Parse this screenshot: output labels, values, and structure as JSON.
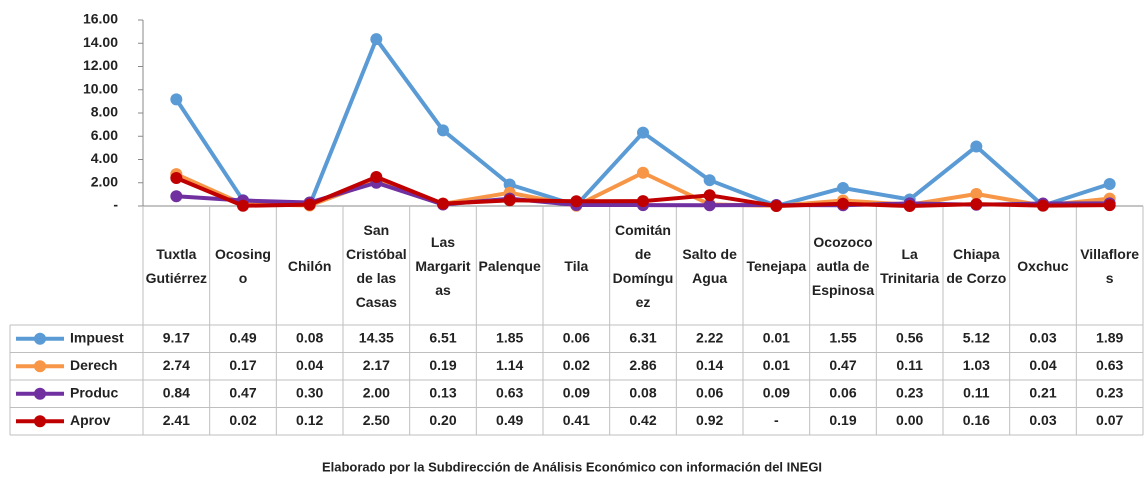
{
  "chart_data": {
    "type": "line",
    "categories": [
      "Tuxtla Gutiérrez",
      "Ocosingo",
      "Chilón",
      "San Cristóbal de las Casas",
      "Las Margaritas",
      "Palenque",
      "Tila",
      "Comitán de Domínguez",
      "Salto de Agua",
      "Tenejapa",
      "Ocozocoautla de Espinosa",
      "La Trinitaria",
      "Chiapa de Corzo",
      "Oxchuc",
      "Villaflores"
    ],
    "series": [
      {
        "name": "Impuest",
        "color": "#5b9bd5",
        "values": [
          9.17,
          0.49,
          0.08,
          14.35,
          6.51,
          1.85,
          0.06,
          6.31,
          2.22,
          0.01,
          1.55,
          0.56,
          5.12,
          0.03,
          1.89
        ],
        "value_labels": [
          "9.17",
          "0.49",
          "0.08",
          "14.35",
          "6.51",
          "1.85",
          "0.06",
          "6.31",
          "2.22",
          "0.01",
          "1.55",
          "0.56",
          "5.12",
          "0.03",
          "1.89"
        ]
      },
      {
        "name": "Derech",
        "color": "#f79646",
        "values": [
          2.74,
          0.17,
          0.04,
          2.17,
          0.19,
          1.14,
          0.02,
          2.86,
          0.14,
          0.01,
          0.47,
          0.11,
          1.03,
          0.04,
          0.63
        ],
        "value_labels": [
          "2.74",
          "0.17",
          "0.04",
          "2.17",
          "0.19",
          "1.14",
          "0.02",
          "2.86",
          "0.14",
          "0.01",
          "0.47",
          "0.11",
          "1.03",
          "0.04",
          "0.63"
        ]
      },
      {
        "name": "Produc",
        "color": "#7030a0",
        "values": [
          0.84,
          0.47,
          0.3,
          2.0,
          0.13,
          0.63,
          0.09,
          0.08,
          0.06,
          0.09,
          0.06,
          0.23,
          0.11,
          0.21,
          0.23
        ],
        "value_labels": [
          "0.84",
          "0.47",
          "0.30",
          "2.00",
          "0.13",
          "0.63",
          "0.09",
          "0.08",
          "0.06",
          "0.09",
          "0.06",
          "0.23",
          "0.11",
          "0.21",
          "0.23"
        ]
      },
      {
        "name": "Aprov",
        "color": "#c00000",
        "values": [
          2.41,
          0.02,
          0.12,
          2.5,
          0.2,
          0.49,
          0.41,
          0.42,
          0.92,
          0,
          0.19,
          0,
          0.16,
          0.03,
          0.07
        ],
        "value_labels": [
          "2.41",
          "0.02",
          "0.12",
          "2.50",
          "0.20",
          "0.49",
          "0.41",
          "0.42",
          "0.92",
          "-",
          "0.19",
          "0.00",
          "0.16",
          "0.03",
          "0.07"
        ]
      }
    ],
    "ylim": [
      0,
      16
    ],
    "yticks": [
      {
        "value": 0,
        "label": "-"
      },
      {
        "value": 2,
        "label": "2.00"
      },
      {
        "value": 4,
        "label": "4.00"
      },
      {
        "value": 6,
        "label": "6.00"
      },
      {
        "value": 8,
        "label": "8.00"
      },
      {
        "value": 10,
        "label": "10.00"
      },
      {
        "value": 12,
        "label": "12.00"
      },
      {
        "value": 14,
        "label": "14.00"
      },
      {
        "value": 16,
        "label": "16.00"
      }
    ],
    "note": "Elaborado por la Subdirección de Análisis Económico con información del INEGI"
  }
}
